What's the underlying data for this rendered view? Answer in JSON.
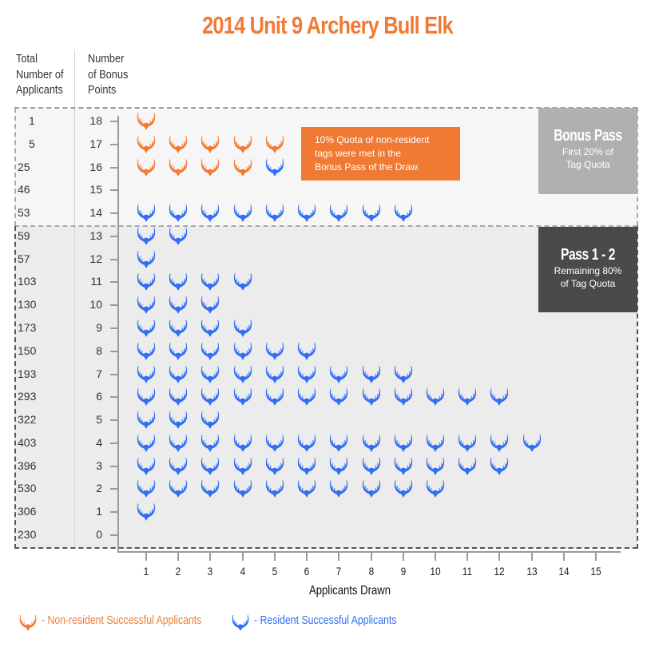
{
  "title": "2014 Unit 9 Archery Bull Elk",
  "column_headers": {
    "total": [
      "Total",
      "Number of",
      "Applicants"
    ],
    "bonus": [
      "Number",
      "of Bonus",
      "Points"
    ]
  },
  "colors": {
    "non_resident": "#f07a34",
    "resident": "#2f6ef5",
    "bonus_pass_box": "#b0b0b0",
    "pass_box": "#4a4a4a",
    "bonus_region_bg": "#f6f6f6",
    "pass_region_bg": "#ececec"
  },
  "note": {
    "lines": [
      "10% Quota of non-resident",
      "tags were met in the",
      "Bonus Pass of the Draw."
    ]
  },
  "bonus_pass_box": {
    "heading": "Bonus Pass",
    "sub": [
      "First 20% of",
      "Tag Quota"
    ]
  },
  "pass_box": {
    "heading": "Pass 1 - 2",
    "sub": [
      "Remaining 80%",
      "of Tag Quota"
    ]
  },
  "x_axis": {
    "title": "Applicants Drawn",
    "ticks": [
      "1",
      "2",
      "3",
      "4",
      "5",
      "6",
      "7",
      "8",
      "9",
      "10",
      "11",
      "12",
      "13",
      "14",
      "15"
    ]
  },
  "legend": {
    "non_resident": "- Non-resident Successful Applicants",
    "resident": "- Resident Successful Applicants"
  },
  "chart_data": {
    "type": "table",
    "title": "2014 Unit 9 Archery Bull Elk",
    "xlabel": "Applicants Drawn",
    "ylabel": "Number of Bonus Points",
    "xlim": [
      0,
      15
    ],
    "ylim": [
      0,
      18
    ],
    "grid": false,
    "legend_position": "bottom",
    "legend": [
      "Non-resident Successful Applicants",
      "Resident Successful Applicants"
    ],
    "annotations": [
      "10% Quota of non-resident tags were met in the Bonus Pass of the Draw.",
      "Bonus Pass - First 20% of Tag Quota (bonus points 14-18)",
      "Pass 1 - 2 - Remaining 80% of Tag Quota (bonus points 0-13)"
    ],
    "rows": [
      {
        "bonus_points": 18,
        "total_applicants": 1,
        "non_resident_drawn": 1,
        "resident_drawn": 0
      },
      {
        "bonus_points": 17,
        "total_applicants": 5,
        "non_resident_drawn": 5,
        "resident_drawn": 0
      },
      {
        "bonus_points": 16,
        "total_applicants": 25,
        "non_resident_drawn": 4,
        "resident_drawn": 1
      },
      {
        "bonus_points": 15,
        "total_applicants": 46,
        "non_resident_drawn": 0,
        "resident_drawn": 0
      },
      {
        "bonus_points": 14,
        "total_applicants": 53,
        "non_resident_drawn": 0,
        "resident_drawn": 9
      },
      {
        "bonus_points": 13,
        "total_applicants": 59,
        "non_resident_drawn": 0,
        "resident_drawn": 2
      },
      {
        "bonus_points": 12,
        "total_applicants": 57,
        "non_resident_drawn": 0,
        "resident_drawn": 1
      },
      {
        "bonus_points": 11,
        "total_applicants": 103,
        "non_resident_drawn": 0,
        "resident_drawn": 4
      },
      {
        "bonus_points": 10,
        "total_applicants": 130,
        "non_resident_drawn": 0,
        "resident_drawn": 3
      },
      {
        "bonus_points": 9,
        "total_applicants": 173,
        "non_resident_drawn": 0,
        "resident_drawn": 4
      },
      {
        "bonus_points": 8,
        "total_applicants": 150,
        "non_resident_drawn": 0,
        "resident_drawn": 6
      },
      {
        "bonus_points": 7,
        "total_applicants": 193,
        "non_resident_drawn": 0,
        "resident_drawn": 9
      },
      {
        "bonus_points": 6,
        "total_applicants": 293,
        "non_resident_drawn": 0,
        "resident_drawn": 12
      },
      {
        "bonus_points": 5,
        "total_applicants": 322,
        "non_resident_drawn": 0,
        "resident_drawn": 3
      },
      {
        "bonus_points": 4,
        "total_applicants": 403,
        "non_resident_drawn": 0,
        "resident_drawn": 13
      },
      {
        "bonus_points": 3,
        "total_applicants": 396,
        "non_resident_drawn": 0,
        "resident_drawn": 12
      },
      {
        "bonus_points": 2,
        "total_applicants": 530,
        "non_resident_drawn": 0,
        "resident_drawn": 10
      },
      {
        "bonus_points": 1,
        "total_applicants": 306,
        "non_resident_drawn": 0,
        "resident_drawn": 1
      },
      {
        "bonus_points": 0,
        "total_applicants": 230,
        "non_resident_drawn": 0,
        "resident_drawn": 0
      }
    ]
  }
}
